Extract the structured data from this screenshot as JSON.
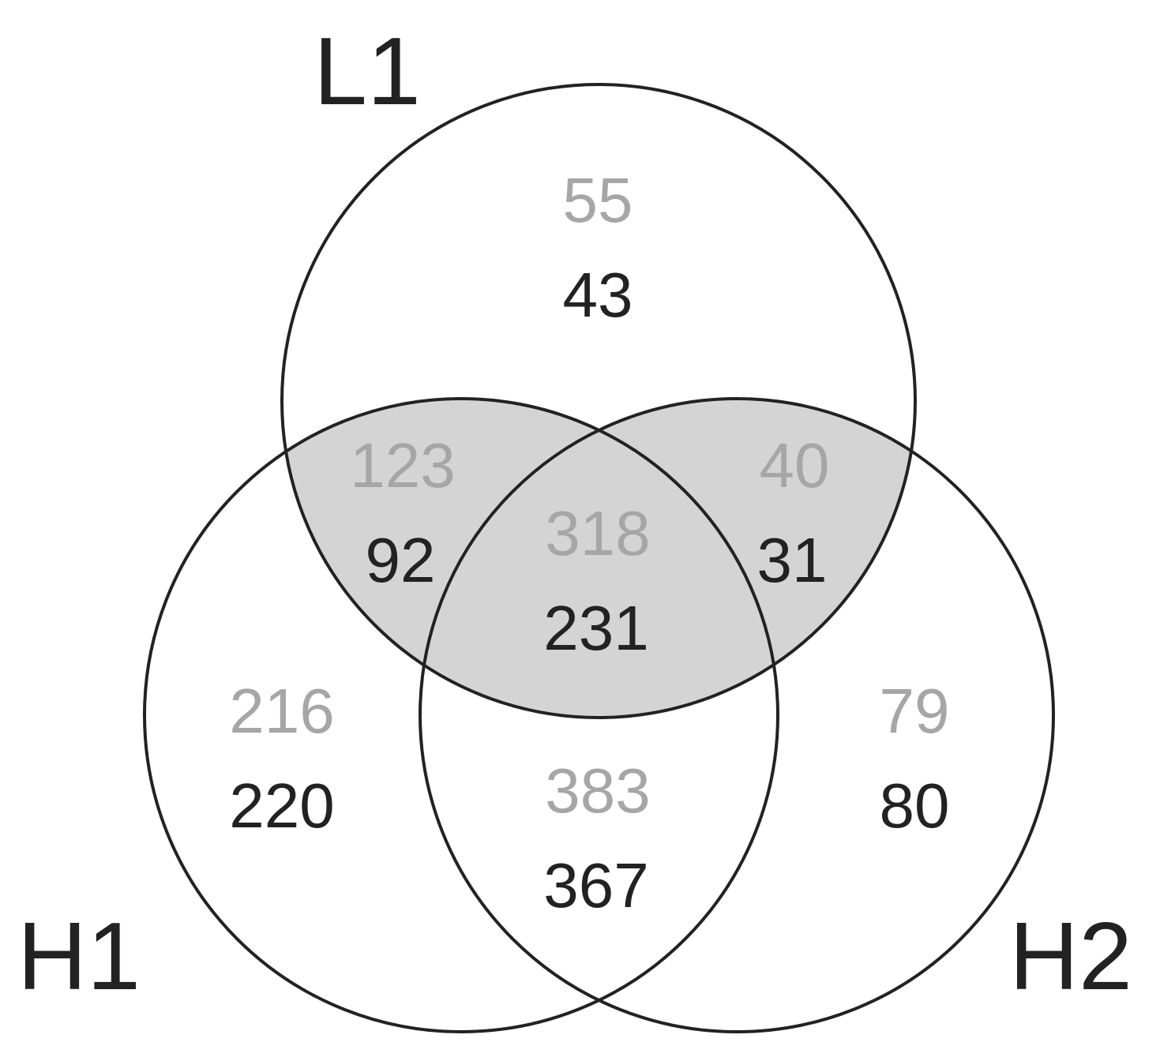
{
  "sets": {
    "L1": "L1",
    "H1": "H1",
    "H2": "H2"
  },
  "colors": {
    "shade": "#d4d4d4",
    "outline": "#222222",
    "count_gray": "#a6a6a6",
    "count_black": "#222222",
    "background": "#ffffff"
  },
  "regions": {
    "l1_only": {
      "gray": "55",
      "black": "43"
    },
    "l1_h1": {
      "gray": "123",
      "black": "92"
    },
    "l1_h2": {
      "gray": "40",
      "black": "31"
    },
    "all_three": {
      "gray": "318",
      "black": "231"
    },
    "h1_only": {
      "gray": "216",
      "black": "220"
    },
    "h1_h2": {
      "gray": "383",
      "black": "367"
    },
    "h2_only": {
      "gray": "79",
      "black": "80"
    }
  }
}
